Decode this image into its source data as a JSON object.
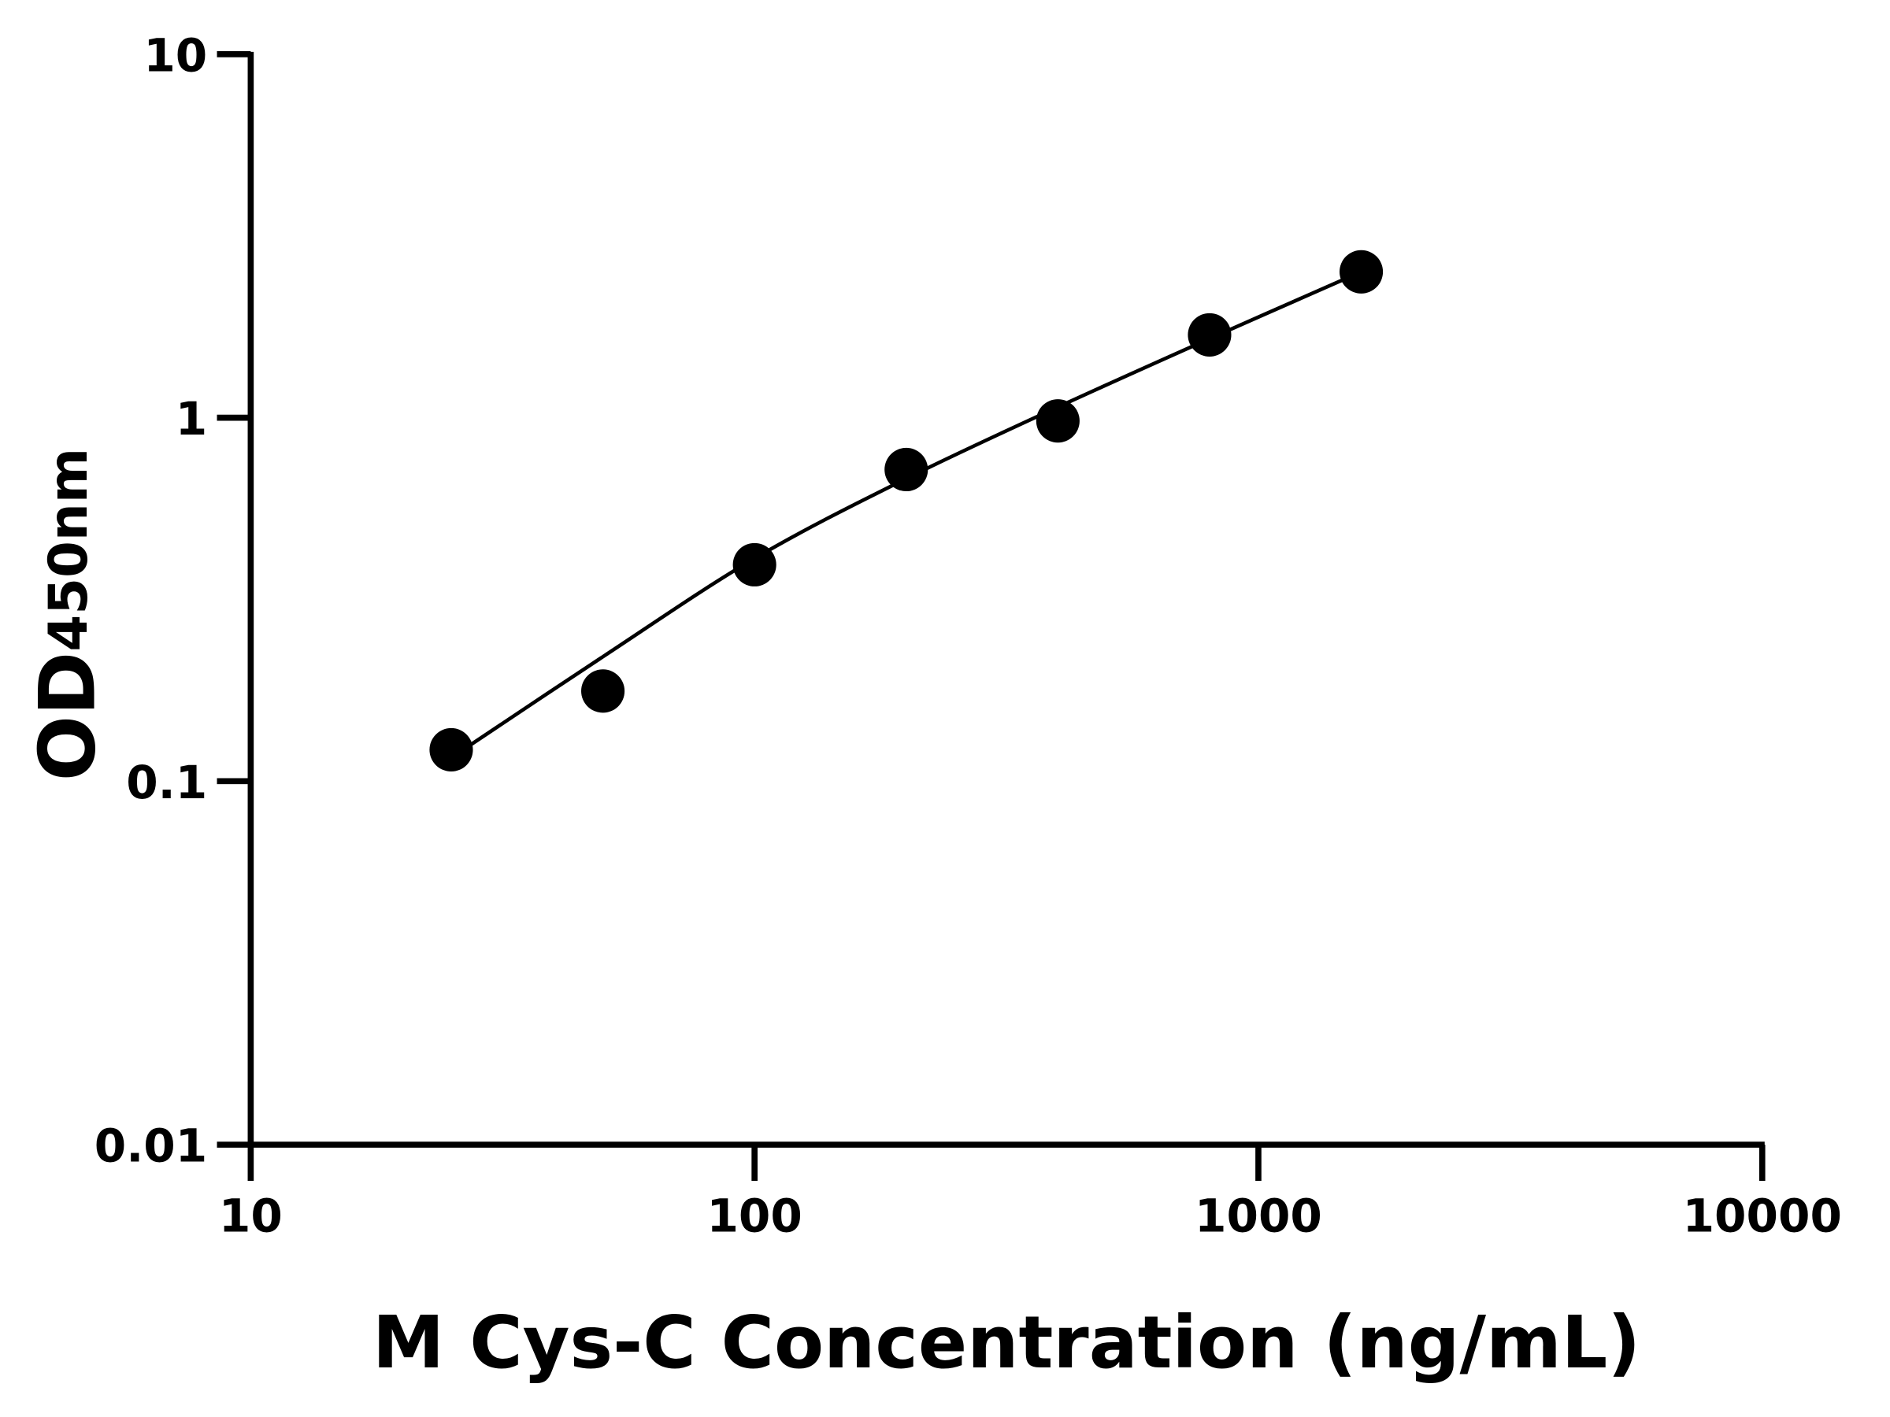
{
  "chart_data": {
    "type": "scatter",
    "xlabel": "M Cys-C Concentration (ng/mL)",
    "ylabel_main": "OD",
    "ylabel_sub": "450nm",
    "x_scale": "log",
    "y_scale": "log",
    "xlim": [
      10,
      10000
    ],
    "ylim": [
      0.01,
      10
    ],
    "x_ticks": [
      "10",
      "100",
      "1000",
      "10000"
    ],
    "y_ticks": [
      "0.01",
      "0.1",
      "1",
      "10"
    ],
    "grid": false,
    "legend": "none",
    "series": [
      {
        "x": [
          25,
          50,
          100,
          200,
          400,
          800,
          1600
        ],
        "y": [
          0.122,
          0.177,
          0.394,
          0.72,
          0.98,
          1.69,
          2.52
        ],
        "marker": "filled-circle",
        "color": "#000000"
      }
    ],
    "fit_curve": {
      "x": [
        25,
        50,
        100,
        200,
        400,
        800,
        1600
      ],
      "y": [
        0.116,
        0.22,
        0.41,
        0.68,
        1.07,
        1.65,
        2.52
      ],
      "color": "#000000"
    }
  }
}
